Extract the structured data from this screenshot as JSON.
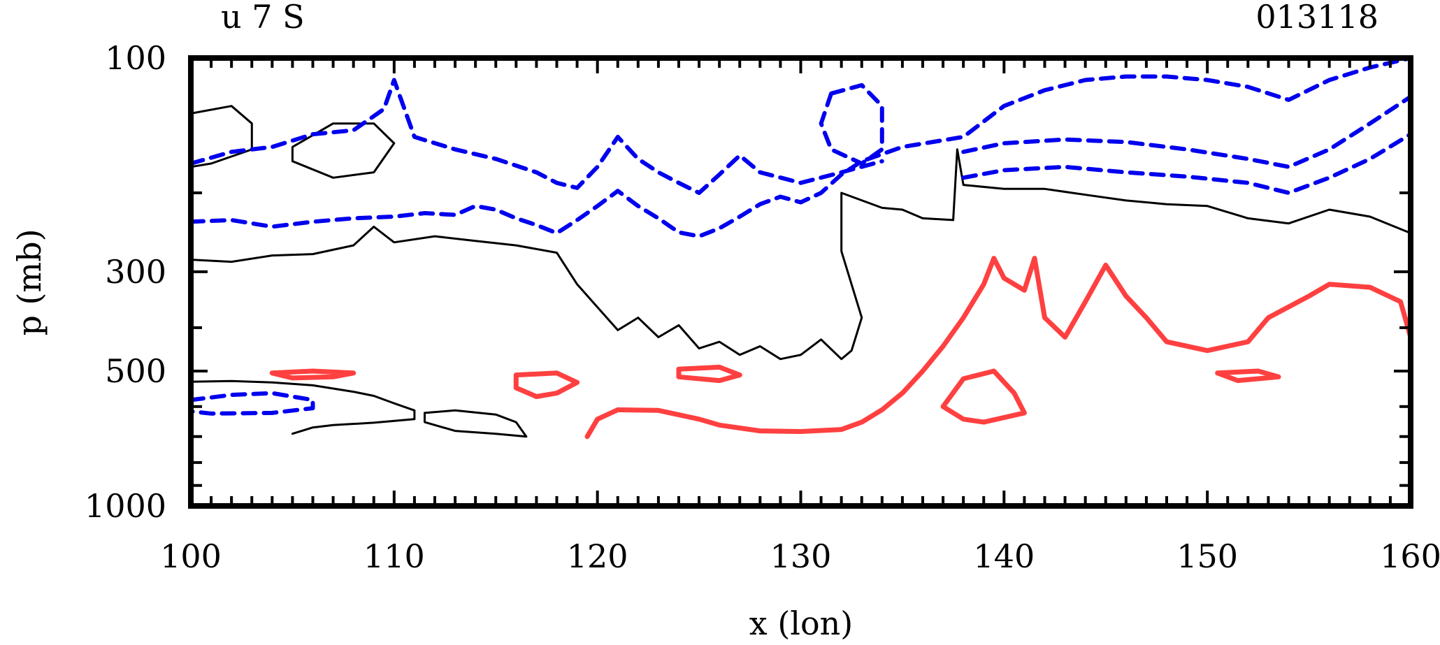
{
  "chart_data": {
    "type": "contour",
    "title_left": "u 7 S",
    "title_right": "013118",
    "xlabel": "x (lon)",
    "ylabel": "p (mb)",
    "xlim": [
      100,
      160
    ],
    "ylim": [
      1000,
      100
    ],
    "y_scale": "log",
    "x_ticks": [
      100,
      110,
      120,
      130,
      140,
      150,
      160
    ],
    "x_tick_labels": [
      "100",
      "110",
      "120",
      "130",
      "140",
      "150",
      "160"
    ],
    "y_ticks": [
      100,
      300,
      500,
      1000
    ],
    "y_tick_labels": [
      "100",
      "300",
      "500",
      "1000"
    ],
    "contour_colors": {
      "positive": "#ff4040",
      "zero": "#000000",
      "negative": "#0000ee"
    },
    "contours": [
      {
        "name": "zero-contour-main",
        "level": "zero",
        "closed": false,
        "points": [
          [
            100,
            282
          ],
          [
            102,
            285
          ],
          [
            104,
            276
          ],
          [
            106,
            274
          ],
          [
            108,
            262
          ],
          [
            109,
            238
          ],
          [
            110,
            258
          ],
          [
            112,
            250
          ],
          [
            114,
            256
          ],
          [
            116,
            262
          ],
          [
            118,
            272
          ],
          [
            119,
            320
          ],
          [
            120,
            360
          ],
          [
            121,
            405
          ],
          [
            122,
            380
          ],
          [
            123,
            420
          ],
          [
            124,
            395
          ],
          [
            125,
            445
          ],
          [
            126,
            430
          ],
          [
            127,
            460
          ],
          [
            128,
            440
          ],
          [
            129,
            470
          ],
          [
            130,
            460
          ],
          [
            131,
            425
          ],
          [
            132,
            470
          ],
          [
            132.5,
            450
          ],
          [
            133,
            380
          ],
          [
            132,
            270
          ],
          [
            132,
            200
          ],
          [
            134,
            216
          ],
          [
            135,
            218
          ],
          [
            136,
            228
          ],
          [
            137.5,
            230
          ],
          [
            137.7,
            160
          ],
          [
            138,
            192
          ],
          [
            140,
            196
          ],
          [
            142,
            196
          ],
          [
            144,
            202
          ],
          [
            146,
            208
          ],
          [
            148,
            212
          ],
          [
            150,
            214
          ],
          [
            152,
            228
          ],
          [
            154,
            234
          ],
          [
            156,
            218
          ],
          [
            158,
            226
          ],
          [
            160,
            246
          ]
        ]
      },
      {
        "name": "zero-contour-lower",
        "level": "zero",
        "closed": false,
        "points": [
          [
            100,
            528
          ],
          [
            102,
            526
          ],
          [
            104,
            530
          ],
          [
            106,
            538
          ],
          [
            108,
            556
          ],
          [
            109,
            568
          ],
          [
            110,
            590
          ],
          [
            111,
            612
          ],
          [
            111,
            640
          ],
          [
            109,
            652
          ],
          [
            107,
            660
          ],
          [
            106,
            668
          ],
          [
            105,
            690
          ]
        ]
      },
      {
        "name": "zero-contour-blob-nw",
        "level": "zero",
        "closed": true,
        "points": [
          [
            100,
            133
          ],
          [
            102,
            128
          ],
          [
            103,
            140
          ],
          [
            103,
            160
          ],
          [
            101,
            172
          ],
          [
            100,
            175
          ]
        ]
      },
      {
        "name": "zero-contour-blob-n2",
        "level": "zero",
        "closed": true,
        "points": [
          [
            105,
            158
          ],
          [
            107,
            140
          ],
          [
            109,
            140
          ],
          [
            110,
            155
          ],
          [
            109,
            180
          ],
          [
            107,
            185
          ],
          [
            105,
            170
          ]
        ]
      },
      {
        "name": "zero-contour-blob-s",
        "level": "zero",
        "closed": true,
        "points": [
          [
            111.5,
            620
          ],
          [
            113,
            612
          ],
          [
            115,
            625
          ],
          [
            116,
            650
          ],
          [
            116.5,
            700
          ],
          [
            115,
            690
          ],
          [
            113,
            680
          ],
          [
            111.5,
            650
          ]
        ]
      },
      {
        "name": "positive-contour-main",
        "level": "positive",
        "closed": false,
        "points": [
          [
            119.5,
            700
          ],
          [
            120,
            640
          ],
          [
            121,
            610
          ],
          [
            123,
            612
          ],
          [
            125,
            640
          ],
          [
            126,
            660
          ],
          [
            128,
            680
          ],
          [
            130,
            682
          ],
          [
            132,
            675
          ],
          [
            133,
            650
          ],
          [
            134,
            610
          ],
          [
            135,
            560
          ],
          [
            136,
            500
          ],
          [
            137,
            440
          ],
          [
            138,
            380
          ],
          [
            139,
            320
          ],
          [
            139.5,
            280
          ],
          [
            140,
            310
          ],
          [
            141,
            330
          ],
          [
            141.5,
            280
          ],
          [
            142,
            380
          ],
          [
            143,
            420
          ],
          [
            144,
            350
          ],
          [
            145,
            290
          ],
          [
            146,
            340
          ],
          [
            147,
            380
          ],
          [
            148,
            430
          ],
          [
            150,
            450
          ],
          [
            152,
            430
          ],
          [
            153,
            380
          ],
          [
            155,
            340
          ],
          [
            156,
            320
          ],
          [
            158,
            325
          ],
          [
            159.5,
            350
          ],
          [
            160,
            420
          ]
        ]
      },
      {
        "name": "positive-contour-mid",
        "level": "positive",
        "closed": true,
        "points": [
          [
            137,
            600
          ],
          [
            138,
            520
          ],
          [
            139.5,
            500
          ],
          [
            140.5,
            560
          ],
          [
            141,
            620
          ],
          [
            139,
            650
          ],
          [
            138,
            640
          ]
        ]
      },
      {
        "name": "positive-contour-blob-1",
        "level": "positive",
        "closed": true,
        "points": [
          [
            104,
            505
          ],
          [
            106,
            500
          ],
          [
            108,
            505
          ],
          [
            107,
            515
          ],
          [
            105,
            518
          ]
        ]
      },
      {
        "name": "positive-contour-blob-2",
        "level": "positive",
        "closed": true,
        "points": [
          [
            116,
            510
          ],
          [
            118,
            505
          ],
          [
            119,
            530
          ],
          [
            118,
            560
          ],
          [
            117,
            570
          ],
          [
            116,
            545
          ]
        ]
      },
      {
        "name": "positive-contour-blob-3",
        "level": "positive",
        "closed": true,
        "points": [
          [
            124,
            495
          ],
          [
            126,
            490
          ],
          [
            127,
            510
          ],
          [
            126,
            525
          ],
          [
            124,
            515
          ]
        ]
      },
      {
        "name": "positive-contour-blob-4",
        "level": "positive",
        "closed": true,
        "points": [
          [
            150.5,
            505
          ],
          [
            152.5,
            500
          ],
          [
            153.5,
            515
          ],
          [
            151.5,
            525
          ]
        ]
      },
      {
        "name": "negative-contour-upper",
        "level": "negative",
        "closed": false,
        "points": [
          [
            100,
            172
          ],
          [
            102,
            162
          ],
          [
            104,
            158
          ],
          [
            106,
            148
          ],
          [
            108,
            145
          ],
          [
            109.5,
            130
          ],
          [
            110,
            112
          ],
          [
            111,
            150
          ],
          [
            113,
            160
          ],
          [
            115,
            168
          ],
          [
            117,
            180
          ],
          [
            118,
            190
          ],
          [
            119,
            195
          ],
          [
            120,
            175
          ],
          [
            121,
            150
          ],
          [
            122,
            168
          ],
          [
            123,
            180
          ],
          [
            124,
            190
          ],
          [
            125,
            200
          ],
          [
            126,
            182
          ],
          [
            127,
            165
          ],
          [
            128,
            180
          ],
          [
            130,
            190
          ],
          [
            132,
            180
          ],
          [
            134,
            170
          ]
        ]
      },
      {
        "name": "negative-contour-lower",
        "level": "negative",
        "closed": false,
        "points": [
          [
            100,
            232
          ],
          [
            102,
            230
          ],
          [
            104,
            238
          ],
          [
            106,
            232
          ],
          [
            108,
            228
          ],
          [
            110,
            226
          ],
          [
            111.5,
            222
          ],
          [
            113,
            224
          ],
          [
            114,
            214
          ],
          [
            115,
            218
          ],
          [
            116,
            228
          ],
          [
            117,
            236
          ],
          [
            118,
            246
          ],
          [
            119,
            230
          ],
          [
            120,
            214
          ],
          [
            121,
            198
          ],
          [
            122,
            214
          ],
          [
            123,
            228
          ],
          [
            124,
            245
          ],
          [
            125,
            250
          ],
          [
            126,
            240
          ],
          [
            127,
            226
          ],
          [
            128,
            212
          ],
          [
            129,
            204
          ],
          [
            130,
            210
          ],
          [
            131,
            200
          ],
          [
            132,
            182
          ],
          [
            133,
            170
          ],
          [
            135,
            158
          ],
          [
            138,
            150
          ],
          [
            140,
            128
          ],
          [
            142,
            118
          ],
          [
            144,
            112
          ],
          [
            146,
            110
          ],
          [
            148,
            110
          ],
          [
            150,
            112
          ],
          [
            152,
            116
          ],
          [
            154,
            124
          ],
          [
            156,
            112
          ],
          [
            158,
            105
          ],
          [
            160,
            100
          ]
        ]
      },
      {
        "name": "negative-contour-east-1",
        "level": "negative",
        "closed": false,
        "points": [
          [
            138,
            185
          ],
          [
            140,
            178
          ],
          [
            143,
            175
          ],
          [
            146,
            180
          ],
          [
            149,
            184
          ],
          [
            152,
            190
          ],
          [
            154,
            200
          ],
          [
            156,
            185
          ],
          [
            158,
            168
          ],
          [
            160,
            148
          ]
        ]
      },
      {
        "name": "negative-contour-east-2",
        "level": "negative",
        "closed": false,
        "points": [
          [
            138,
            162
          ],
          [
            140,
            155
          ],
          [
            143,
            152
          ],
          [
            146,
            154
          ],
          [
            149,
            160
          ],
          [
            152,
            168
          ],
          [
            154,
            175
          ],
          [
            156,
            160
          ],
          [
            158,
            140
          ],
          [
            160,
            122
          ]
        ]
      },
      {
        "name": "negative-contour-blob-w",
        "level": "negative",
        "closed": true,
        "points": [
          [
            100,
            580
          ],
          [
            102,
            565
          ],
          [
            104,
            560
          ],
          [
            106,
            580
          ],
          [
            106,
            605
          ],
          [
            104,
            620
          ],
          [
            101,
            622
          ],
          [
            100,
            615
          ]
        ]
      },
      {
        "name": "negative-contour-blob-c",
        "level": "negative",
        "closed": true,
        "points": [
          [
            131.5,
            120
          ],
          [
            133,
            115
          ],
          [
            134,
            128
          ],
          [
            134,
            160
          ],
          [
            133,
            172
          ],
          [
            131.5,
            160
          ],
          [
            131,
            140
          ]
        ]
      }
    ]
  }
}
